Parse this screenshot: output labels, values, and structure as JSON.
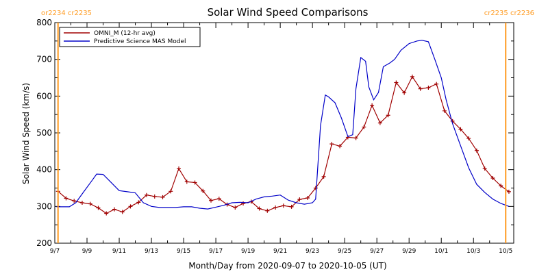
{
  "chart_data": {
    "type": "line",
    "title": "Solar Wind Speed Comparisons",
    "xlabel": "Month/Day from 2020-09-07 to 2020-10-05 (UT)",
    "ylabel": "Solar Wind Speed (km/s)",
    "xlim_days": [
      0,
      28.5
    ],
    "ylim": [
      200,
      800
    ],
    "yticks": [
      200,
      300,
      400,
      500,
      600,
      700,
      800
    ],
    "xticks": [
      {
        "day": 0,
        "label": "9/7"
      },
      {
        "day": 2,
        "label": "9/9"
      },
      {
        "day": 4,
        "label": "9/11"
      },
      {
        "day": 6,
        "label": "9/13"
      },
      {
        "day": 8,
        "label": "9/15"
      },
      {
        "day": 10,
        "label": "9/17"
      },
      {
        "day": 12,
        "label": "9/19"
      },
      {
        "day": 14,
        "label": "9/21"
      },
      {
        "day": 16,
        "label": "9/23"
      },
      {
        "day": 18,
        "label": "9/25"
      },
      {
        "day": 20,
        "label": "9/27"
      },
      {
        "day": 22,
        "label": "9/29"
      },
      {
        "day": 24,
        "label": "10/1"
      },
      {
        "day": 26,
        "label": "10/3"
      },
      {
        "day": 28,
        "label": "10/5"
      }
    ],
    "legend_position": "top-left",
    "series": [
      {
        "name": "OMNI_M (12-hr avg)",
        "color": "#a00000",
        "markers": true,
        "x": [
          0.2,
          0.7,
          1.2,
          1.7,
          2.2,
          2.7,
          3.2,
          3.7,
          4.2,
          4.7,
          5.2,
          5.7,
          6.2,
          6.7,
          7.2,
          7.7,
          8.2,
          8.7,
          9.2,
          9.7,
          10.2,
          10.7,
          11.2,
          11.7,
          12.2,
          12.7,
          13.2,
          13.7,
          14.2,
          14.7,
          15.2,
          15.7,
          16.2,
          16.7,
          17.2,
          17.7,
          18.2,
          18.7,
          19.2,
          19.7,
          20.2,
          20.7,
          21.2,
          21.7,
          22.2,
          22.7,
          23.2,
          23.7,
          24.2,
          24.7,
          25.2,
          25.7,
          26.2,
          26.7,
          27.2,
          27.7,
          28.2
        ],
        "y": [
          341,
          322,
          315,
          310,
          307,
          296,
          281,
          292,
          285,
          300,
          311,
          331,
          327,
          325,
          341,
          403,
          367,
          365,
          342,
          316,
          321,
          305,
          297,
          308,
          313,
          294,
          288,
          297,
          302,
          299,
          319,
          323,
          350,
          381,
          470,
          464,
          488,
          486,
          516,
          575,
          527,
          548,
          637,
          609,
          653,
          620,
          623,
          633,
          560,
          532,
          510,
          485,
          452,
          403,
          377,
          356,
          340
        ]
      },
      {
        "name": "Predictive Science MAS Model",
        "color": "#0000c8",
        "markers": false,
        "x": [
          0.1,
          0.6,
          0.9,
          1.3,
          1.8,
          2.3,
          2.6,
          3.0,
          3.5,
          4.0,
          4.5,
          5.0,
          5.5,
          6.0,
          6.5,
          7.0,
          7.5,
          8.0,
          8.5,
          9.0,
          9.5,
          10.0,
          10.5,
          11.0,
          11.5,
          12.0,
          12.5,
          13.0,
          13.5,
          14.0,
          14.5,
          15.0,
          15.5,
          16.0,
          16.2,
          16.5,
          16.8,
          17.0,
          17.4,
          17.8,
          18.2,
          18.5,
          18.7,
          19.0,
          19.3,
          19.5,
          19.8,
          20.1,
          20.4,
          20.8,
          21.1,
          21.5,
          22.0,
          22.5,
          22.8,
          23.2,
          23.6,
          24.0,
          24.3,
          24.7,
          25.2,
          25.7,
          26.2,
          26.7,
          27.2,
          27.7,
          28.2
        ],
        "y": [
          299,
          299,
          299,
          310,
          340,
          370,
          388,
          387,
          365,
          343,
          340,
          337,
          310,
          300,
          297,
          297,
          297,
          299,
          299,
          295,
          293,
          298,
          303,
          310,
          311,
          310,
          320,
          326,
          328,
          331,
          317,
          310,
          306,
          310,
          320,
          520,
          603,
          598,
          582,
          540,
          490,
          495,
          620,
          705,
          695,
          625,
          590,
          610,
          680,
          690,
          700,
          725,
          743,
          750,
          752,
          748,
          700,
          650,
          590,
          525,
          465,
          405,
          360,
          338,
          320,
          308,
          300
        ]
      }
    ],
    "vertical_markers": [
      {
        "day": 0.2,
        "label": "or2234 cr2235",
        "label_side": "left",
        "color": "#ff9a1f"
      },
      {
        "day": 28.0,
        "label": "cr2235 cr2236",
        "label_side": "right",
        "color": "#ff9a1f"
      }
    ]
  }
}
